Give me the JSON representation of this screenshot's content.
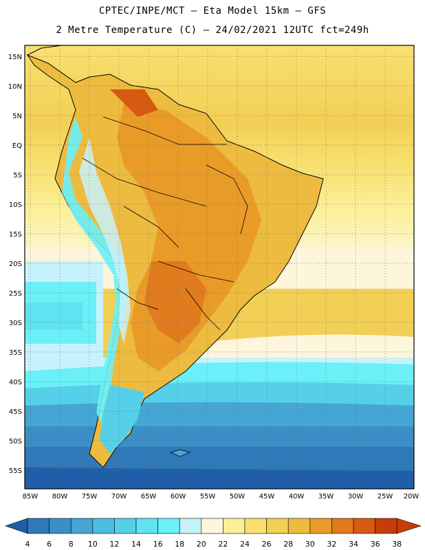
{
  "title_line1": "CPTEC/INPE/MCT –  Eta Model 15km – GFS",
  "title_line2": "2 Metre Temperature (C) – 24/02/2021 12UTC fct=249h",
  "lat_labels": [
    "15N",
    "10N",
    "5N",
    "EQ",
    "5S",
    "10S",
    "15S",
    "20S",
    "25S",
    "30S",
    "35S",
    "40S",
    "45S",
    "50S",
    "55S"
  ],
  "lon_labels": [
    "85W",
    "80W",
    "75W",
    "70W",
    "65W",
    "60W",
    "55W",
    "50W",
    "45W",
    "40W",
    "35W",
    "30W",
    "25W",
    "20W"
  ],
  "colorbar": {
    "values": [
      "4",
      "6",
      "8",
      "10",
      "12",
      "14",
      "16",
      "18",
      "20",
      "22",
      "24",
      "26",
      "28",
      "30",
      "32",
      "34",
      "36",
      "38"
    ],
    "colors": [
      "#1f5ea8",
      "#2f79b8",
      "#3b8fc6",
      "#45a6d3",
      "#4dbcdf",
      "#55d0e8",
      "#5fe3f1",
      "#6bf0f8",
      "#c8f2fb",
      "#fdf6dc",
      "#fbf09a",
      "#f8e070",
      "#f2cf55",
      "#edbb3f",
      "#e99b28",
      "#e07b1e",
      "#d65a12",
      "#c63d0a"
    ]
  }
}
